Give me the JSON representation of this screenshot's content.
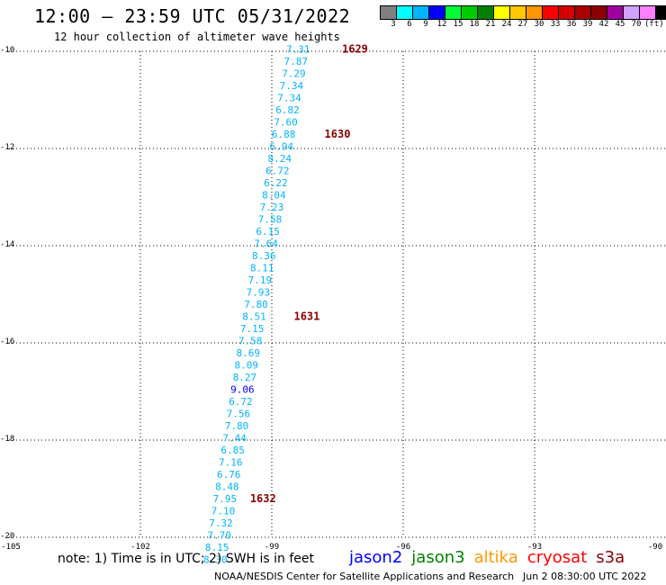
{
  "title": "12:00 — 23:59 UTC 05/31/2022",
  "subtitle": "12 hour collection of altimeter wave heights",
  "legend": {
    "colors": [
      "#808080",
      "#00ffff",
      "#00b4ff",
      "#0000ff",
      "#00ff33",
      "#00cc00",
      "#008000",
      "#ffff00",
      "#ffc800",
      "#ff9600",
      "#ff0000",
      "#d70000",
      "#aa0000",
      "#8b0000",
      "#a000a0",
      "#d2a0ff",
      "#ff80ff",
      "#000000"
    ],
    "labels": [
      "3",
      "6",
      "9",
      "12",
      "15",
      "18",
      "21",
      "24",
      "27",
      "30",
      "33",
      "36",
      "39",
      "42",
      "45",
      "70"
    ],
    "unit": "(ft)"
  },
  "note": "note: 1) Time is in UTC; 2) SWH is in feet",
  "satellites": [
    {
      "name": "jason2",
      "color": "#0000ff"
    },
    {
      "name": "jason3",
      "color": "#008000"
    },
    {
      "name": "altika",
      "color": "#ff9900"
    },
    {
      "name": "cryosat",
      "color": "#ff0000"
    },
    {
      "name": "s3a",
      "color": "#8b0000"
    }
  ],
  "credit": "NOAA/NESDIS Center for Satellite Applications and Research",
  "timestamp": "Jun  2 08:30:00 UTC 2022",
  "chart_data": {
    "type": "scatter",
    "xlim": [
      -105,
      -90
    ],
    "ylim": [
      -20,
      -10
    ],
    "x_ticks": [
      -105,
      -102,
      -99,
      -96,
      -93,
      -90
    ],
    "x_tick_labels": [
      "-105",
      "-102",
      "-99",
      "-96",
      "-93",
      "-90"
    ],
    "y_ticks": [
      -10,
      -12,
      -14,
      -16,
      -18,
      -20
    ],
    "y_tick_labels": [
      "-10",
      "-12",
      "-14",
      "-16",
      "-18",
      "-20"
    ],
    "grid": true,
    "points": [
      {
        "lon": -98.4,
        "lat": -9.95,
        "v": "7.31",
        "c": "#00b4ff"
      },
      {
        "lon": -98.45,
        "lat": -10.2,
        "v": "7.87",
        "c": "#00b4ff"
      },
      {
        "lon": -98.5,
        "lat": -10.45,
        "v": "7.29",
        "c": "#00b4ff"
      },
      {
        "lon": -98.55,
        "lat": -10.7,
        "v": "7.34",
        "c": "#00b4ff"
      },
      {
        "lon": -98.6,
        "lat": -10.95,
        "v": "7.34",
        "c": "#00b4ff"
      },
      {
        "lon": -98.64,
        "lat": -11.2,
        "v": "6.82",
        "c": "#00b4ff"
      },
      {
        "lon": -98.68,
        "lat": -11.45,
        "v": "7.60",
        "c": "#00b4ff"
      },
      {
        "lon": -98.73,
        "lat": -11.7,
        "v": "6.88",
        "c": "#00b4ff"
      },
      {
        "lon": -98.78,
        "lat": -11.95,
        "v": "6.94",
        "c": "#00b4ff"
      },
      {
        "lon": -98.82,
        "lat": -12.2,
        "v": "8.24",
        "c": "#00b4ff"
      },
      {
        "lon": -98.87,
        "lat": -12.45,
        "v": "6.72",
        "c": "#00b4ff"
      },
      {
        "lon": -98.91,
        "lat": -12.7,
        "v": "6.22",
        "c": "#00b4ff"
      },
      {
        "lon": -98.95,
        "lat": -12.95,
        "v": "8.04",
        "c": "#00b4ff"
      },
      {
        "lon": -99.0,
        "lat": -13.2,
        "v": "7.23",
        "c": "#00b4ff"
      },
      {
        "lon": -99.04,
        "lat": -13.45,
        "v": "7.58",
        "c": "#00b4ff"
      },
      {
        "lon": -99.09,
        "lat": -13.7,
        "v": "6.15",
        "c": "#00b4ff"
      },
      {
        "lon": -99.13,
        "lat": -13.95,
        "v": "7.64",
        "c": "#00b4ff"
      },
      {
        "lon": -99.18,
        "lat": -14.2,
        "v": "8.36",
        "c": "#00b4ff"
      },
      {
        "lon": -99.22,
        "lat": -14.45,
        "v": "8.11",
        "c": "#00b4ff"
      },
      {
        "lon": -99.27,
        "lat": -14.7,
        "v": "7.19",
        "c": "#00b4ff"
      },
      {
        "lon": -99.31,
        "lat": -14.95,
        "v": "7.93",
        "c": "#00b4ff"
      },
      {
        "lon": -99.36,
        "lat": -15.2,
        "v": "7.80",
        "c": "#00b4ff"
      },
      {
        "lon": -99.4,
        "lat": -15.45,
        "v": "8.51",
        "c": "#00b4ff"
      },
      {
        "lon": -99.45,
        "lat": -15.7,
        "v": "7.15",
        "c": "#00b4ff"
      },
      {
        "lon": -99.49,
        "lat": -15.95,
        "v": "7.58",
        "c": "#00b4ff"
      },
      {
        "lon": -99.54,
        "lat": -16.2,
        "v": "8.69",
        "c": "#00b4ff"
      },
      {
        "lon": -99.58,
        "lat": -16.45,
        "v": "8.09",
        "c": "#00b4ff"
      },
      {
        "lon": -99.62,
        "lat": -16.7,
        "v": "8.27",
        "c": "#00b4ff"
      },
      {
        "lon": -99.67,
        "lat": -16.95,
        "v": "9.06",
        "c": "#0000ff"
      },
      {
        "lon": -99.71,
        "lat": -17.2,
        "v": "6.72",
        "c": "#00b4ff"
      },
      {
        "lon": -99.76,
        "lat": -17.45,
        "v": "7.56",
        "c": "#00b4ff"
      },
      {
        "lon": -99.8,
        "lat": -17.7,
        "v": "7.80",
        "c": "#00b4ff"
      },
      {
        "lon": -99.85,
        "lat": -17.95,
        "v": "7.44",
        "c": "#00b4ff"
      },
      {
        "lon": -99.89,
        "lat": -18.2,
        "v": "6.85",
        "c": "#00b4ff"
      },
      {
        "lon": -99.94,
        "lat": -18.45,
        "v": "7.16",
        "c": "#00b4ff"
      },
      {
        "lon": -99.98,
        "lat": -18.7,
        "v": "6.76",
        "c": "#00b4ff"
      },
      {
        "lon": -100.02,
        "lat": -18.95,
        "v": "8.48",
        "c": "#00b4ff"
      },
      {
        "lon": -100.07,
        "lat": -19.2,
        "v": "7.95",
        "c": "#00b4ff"
      },
      {
        "lon": -100.11,
        "lat": -19.45,
        "v": "7.10",
        "c": "#00b4ff"
      },
      {
        "lon": -100.16,
        "lat": -19.7,
        "v": "7.32",
        "c": "#00b4ff"
      },
      {
        "lon": -100.2,
        "lat": -19.95,
        "v": "7.70",
        "c": "#00b4ff"
      },
      {
        "lon": -100.25,
        "lat": -20.2,
        "v": "8.15",
        "c": "#00b4ff"
      },
      {
        "lon": -100.29,
        "lat": -20.45,
        "v": "8.30",
        "c": "#00b4ff"
      }
    ],
    "time_labels": [
      {
        "lon": -97.1,
        "lat": -9.95,
        "text": "1629"
      },
      {
        "lon": -97.5,
        "lat": -11.7,
        "text": "1630"
      },
      {
        "lon": -98.2,
        "lat": -15.45,
        "text": "1631"
      },
      {
        "lon": -99.2,
        "lat": -19.2,
        "text": "1632"
      }
    ],
    "time_label_color": "#8b0000"
  }
}
